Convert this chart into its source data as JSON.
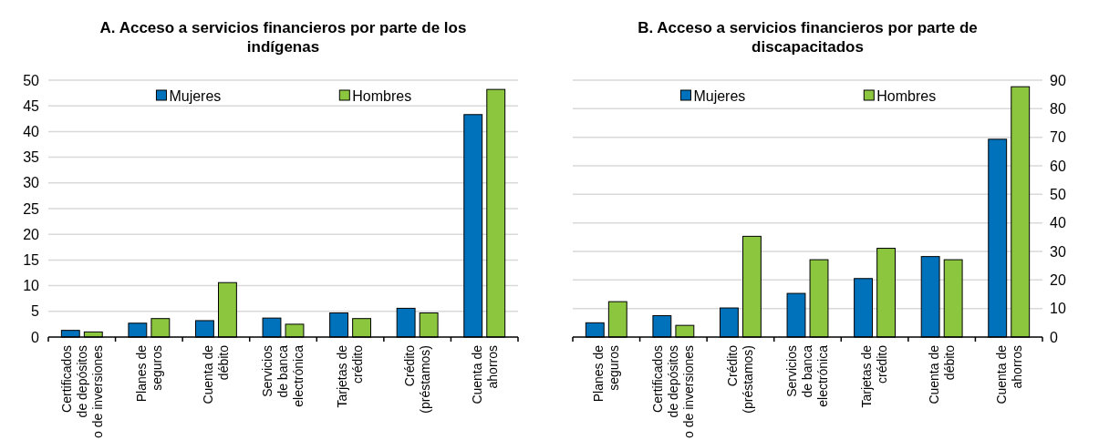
{
  "chart_data": [
    {
      "type": "bar",
      "title": "A. Acceso a servicios financieros por parte de los\nindígenas",
      "categories": [
        "Certificados\nde depósitos\no de inversiones",
        "Planes de\nseguros",
        "Cuenta de\ndébito",
        "Servicios\nde banca\nelectrónica",
        "Tarjetas de\ncrédito",
        "Crédito\n(préstamos)",
        "Cuenta de\nahorros"
      ],
      "series": [
        {
          "name": "Mujeres",
          "color": "#0072bc",
          "values": [
            1.3,
            2.7,
            3.2,
            3.7,
            4.7,
            5.6,
            43.3
          ]
        },
        {
          "name": "Hombres",
          "color": "#8cc63f",
          "values": [
            1.0,
            3.6,
            10.6,
            2.5,
            3.6,
            4.7,
            48.2
          ]
        }
      ],
      "ylim": [
        0,
        50
      ],
      "yticks": [
        0,
        5,
        10,
        15,
        20,
        25,
        30,
        35,
        40,
        45,
        50
      ],
      "grid": "y",
      "legend": "top"
    },
    {
      "type": "bar",
      "title": "B. Acceso a servicios financieros por parte de\ndiscapacitados",
      "categories": [
        "Planes de\nseguros",
        "Certificados\nde depósitos\no de inversiones",
        "Crédito\n(préstamos)",
        "Servicios\nde banca\nelectrónica",
        "Tarjetas de\ncrédito",
        "Cuenta de\ndébito",
        "Cuenta de\nahorros"
      ],
      "series": [
        {
          "name": "Mujeres",
          "color": "#0072bc",
          "values": [
            5.0,
            7.5,
            10.2,
            15.3,
            20.5,
            28.2,
            69.3
          ],
          "axis": "y2"
        },
        {
          "name": "Hombres",
          "color": "#8cc63f",
          "values": [
            12.4,
            4.1,
            35.3,
            27.1,
            31.1,
            27.1,
            87.7
          ],
          "axis": "y2"
        }
      ],
      "y2lim": [
        0,
        90
      ],
      "y2ticks": [
        0,
        10,
        20,
        30,
        40,
        50,
        60,
        70,
        80,
        90
      ],
      "grid": "y",
      "legend": "top"
    }
  ]
}
